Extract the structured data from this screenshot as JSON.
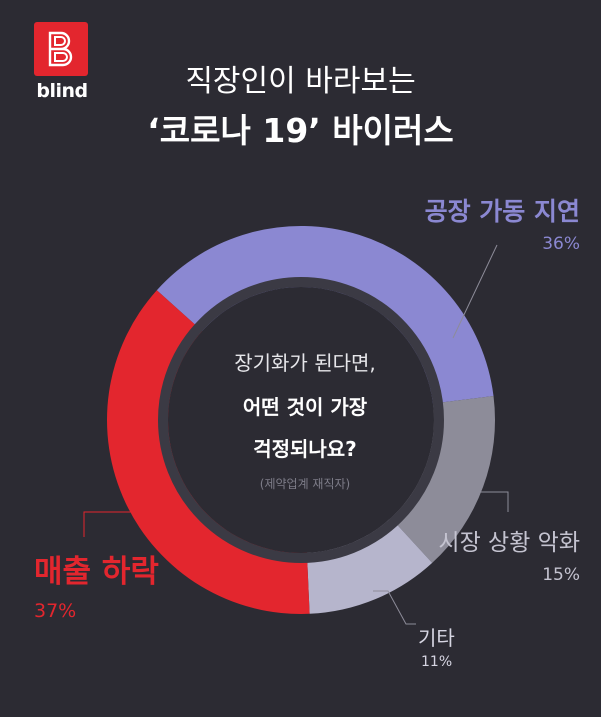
{
  "brand": {
    "logo_text": "blind"
  },
  "title_line1": "직장인이 바라보는",
  "title_line2": "‘코로나 19’ 바이러스",
  "center": {
    "line1": "장기화가 된다면,",
    "line2": "어떤 것이 가장",
    "line3": "걱정되나요?",
    "note": "(제약업계 재직자)"
  },
  "labels": {
    "factory": {
      "name": "공장 가동 지연",
      "value": "36%"
    },
    "market": {
      "name": "시장 상황 악화",
      "value": "15%"
    },
    "other": {
      "name": "기타",
      "value": "11%"
    },
    "sales": {
      "name": "매출 하락",
      "value": "37%"
    }
  },
  "chart_data": {
    "type": "pie",
    "title": "직장인이 바라보는 ‘코로나 19’ 바이러스",
    "subtitle": "장기화가 된다면, 어떤 것이 가장 걱정되나요? (제약업계 재직자)",
    "categories": [
      "공장 가동 지연",
      "시장 상황 악화",
      "기타",
      "매출 하락"
    ],
    "values": [
      36,
      15,
      11,
      37
    ],
    "unit": "%",
    "colors": [
      "#8b88d2",
      "#8d8c99",
      "#b6b5cc",
      "#e3262e"
    ],
    "style": "donut"
  }
}
